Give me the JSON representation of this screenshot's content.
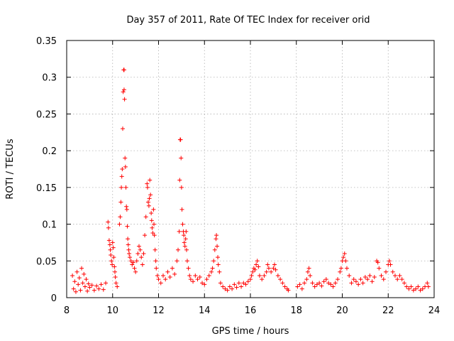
{
  "chart_data": {
    "type": "scatter",
    "title": "Day 357 of 2011, Rate Of TEC Index for receiver orid",
    "xlabel": "GPS time / hours",
    "ylabel": "ROTI / TECUs",
    "xlim": [
      8,
      24
    ],
    "ylim": [
      0,
      0.35
    ],
    "xticks": [
      8,
      10,
      12,
      14,
      16,
      18,
      20,
      22,
      24
    ],
    "xtick_labels": [
      "8",
      "10",
      "12",
      "14",
      "16",
      "18",
      "20",
      "22",
      "24"
    ],
    "yticks": [
      0,
      0.05,
      0.1,
      0.15,
      0.2,
      0.25,
      0.3,
      0.35
    ],
    "ytick_labels": [
      "0",
      "0.05",
      "0.1",
      "0.15",
      "0.2",
      "0.25",
      "0.3",
      "0.35"
    ],
    "grid": true,
    "marker": "+",
    "color": "#ff0000",
    "series": [
      {
        "name": "ROTI",
        "points": [
          [
            8.25,
            0.03
          ],
          [
            8.3,
            0.012
          ],
          [
            8.35,
            0.022
          ],
          [
            8.4,
            0.008
          ],
          [
            8.45,
            0.035
          ],
          [
            8.5,
            0.018
          ],
          [
            8.55,
            0.027
          ],
          [
            8.6,
            0.01
          ],
          [
            8.65,
            0.04
          ],
          [
            8.7,
            0.02
          ],
          [
            8.75,
            0.032
          ],
          [
            8.8,
            0.015
          ],
          [
            8.85,
            0.025
          ],
          [
            8.9,
            0.009
          ],
          [
            8.95,
            0.019
          ],
          [
            9.0,
            0.014
          ],
          [
            9.1,
            0.017
          ],
          [
            9.2,
            0.01
          ],
          [
            9.3,
            0.016
          ],
          [
            9.4,
            0.012
          ],
          [
            9.5,
            0.018
          ],
          [
            9.6,
            0.011
          ],
          [
            9.7,
            0.02
          ],
          [
            9.8,
            0.103
          ],
          [
            9.82,
            0.095
          ],
          [
            9.85,
            0.078
          ],
          [
            9.88,
            0.072
          ],
          [
            9.9,
            0.065
          ],
          [
            9.92,
            0.058
          ],
          [
            9.95,
            0.05
          ],
          [
            9.98,
            0.045
          ],
          [
            10.0,
            0.075
          ],
          [
            10.03,
            0.068
          ],
          [
            10.05,
            0.055
          ],
          [
            10.08,
            0.042
          ],
          [
            10.1,
            0.035
          ],
          [
            10.12,
            0.028
          ],
          [
            10.15,
            0.02
          ],
          [
            10.2,
            0.015
          ],
          [
            10.3,
            0.1
          ],
          [
            10.33,
            0.11
          ],
          [
            10.36,
            0.13
          ],
          [
            10.38,
            0.15
          ],
          [
            10.4,
            0.165
          ],
          [
            10.42,
            0.175
          ],
          [
            10.44,
            0.23
          ],
          [
            10.46,
            0.28
          ],
          [
            10.48,
            0.31
          ],
          [
            10.5,
            0.31
          ],
          [
            10.5,
            0.283
          ],
          [
            10.52,
            0.27
          ],
          [
            10.54,
            0.19
          ],
          [
            10.56,
            0.178
          ],
          [
            10.58,
            0.15
          ],
          [
            10.6,
            0.124
          ],
          [
            10.62,
            0.12
          ],
          [
            10.64,
            0.097
          ],
          [
            10.66,
            0.08
          ],
          [
            10.68,
            0.072
          ],
          [
            10.7,
            0.065
          ],
          [
            10.72,
            0.06
          ],
          [
            10.75,
            0.055
          ],
          [
            10.8,
            0.05
          ],
          [
            10.85,
            0.045
          ],
          [
            10.9,
            0.048
          ],
          [
            10.95,
            0.04
          ],
          [
            11.0,
            0.035
          ],
          [
            11.05,
            0.05
          ],
          [
            11.1,
            0.06
          ],
          [
            11.15,
            0.07
          ],
          [
            11.2,
            0.065
          ],
          [
            11.25,
            0.055
          ],
          [
            11.3,
            0.045
          ],
          [
            11.35,
            0.06
          ],
          [
            11.4,
            0.085
          ],
          [
            11.45,
            0.11
          ],
          [
            11.5,
            0.155
          ],
          [
            11.52,
            0.15
          ],
          [
            11.55,
            0.13
          ],
          [
            11.58,
            0.125
          ],
          [
            11.6,
            0.135
          ],
          [
            11.62,
            0.16
          ],
          [
            11.65,
            0.14
          ],
          [
            11.68,
            0.115
          ],
          [
            11.7,
            0.105
          ],
          [
            11.72,
            0.095
          ],
          [
            11.75,
            0.088
          ],
          [
            11.78,
            0.12
          ],
          [
            11.8,
            0.1
          ],
          [
            11.82,
            0.085
          ],
          [
            11.85,
            0.065
          ],
          [
            11.88,
            0.05
          ],
          [
            11.9,
            0.04
          ],
          [
            11.95,
            0.03
          ],
          [
            12.0,
            0.025
          ],
          [
            12.1,
            0.02
          ],
          [
            12.2,
            0.03
          ],
          [
            12.3,
            0.025
          ],
          [
            12.4,
            0.035
          ],
          [
            12.5,
            0.028
          ],
          [
            12.6,
            0.04
          ],
          [
            12.7,
            0.032
          ],
          [
            12.8,
            0.05
          ],
          [
            12.85,
            0.065
          ],
          [
            12.9,
            0.09
          ],
          [
            12.92,
            0.16
          ],
          [
            12.94,
            0.215
          ],
          [
            12.96,
            0.215
          ],
          [
            12.98,
            0.19
          ],
          [
            13.0,
            0.15
          ],
          [
            13.02,
            0.12
          ],
          [
            13.05,
            0.1
          ],
          [
            13.08,
            0.09
          ],
          [
            13.1,
            0.085
          ],
          [
            13.12,
            0.075
          ],
          [
            13.15,
            0.07
          ],
          [
            13.18,
            0.08
          ],
          [
            13.2,
            0.09
          ],
          [
            13.22,
            0.065
          ],
          [
            13.25,
            0.05
          ],
          [
            13.3,
            0.04
          ],
          [
            13.35,
            0.03
          ],
          [
            13.4,
            0.025
          ],
          [
            13.5,
            0.022
          ],
          [
            13.6,
            0.03
          ],
          [
            13.7,
            0.025
          ],
          [
            13.8,
            0.028
          ],
          [
            13.9,
            0.02
          ],
          [
            14.0,
            0.018
          ],
          [
            14.1,
            0.025
          ],
          [
            14.2,
            0.03
          ],
          [
            14.3,
            0.035
          ],
          [
            14.35,
            0.04
          ],
          [
            14.4,
            0.05
          ],
          [
            14.45,
            0.065
          ],
          [
            14.5,
            0.08
          ],
          [
            14.52,
            0.085
          ],
          [
            14.55,
            0.07
          ],
          [
            14.58,
            0.055
          ],
          [
            14.6,
            0.045
          ],
          [
            14.65,
            0.035
          ],
          [
            14.7,
            0.02
          ],
          [
            14.8,
            0.015
          ],
          [
            14.9,
            0.012
          ],
          [
            15.0,
            0.01
          ],
          [
            15.1,
            0.015
          ],
          [
            15.2,
            0.012
          ],
          [
            15.3,
            0.018
          ],
          [
            15.4,
            0.014
          ],
          [
            15.5,
            0.02
          ],
          [
            15.6,
            0.015
          ],
          [
            15.7,
            0.02
          ],
          [
            15.8,
            0.018
          ],
          [
            15.9,
            0.022
          ],
          [
            16.0,
            0.025
          ],
          [
            16.05,
            0.03
          ],
          [
            16.1,
            0.035
          ],
          [
            16.15,
            0.04
          ],
          [
            16.2,
            0.038
          ],
          [
            16.25,
            0.045
          ],
          [
            16.3,
            0.05
          ],
          [
            16.35,
            0.042
          ],
          [
            16.4,
            0.03
          ],
          [
            16.5,
            0.025
          ],
          [
            16.6,
            0.03
          ],
          [
            16.7,
            0.035
          ],
          [
            16.75,
            0.045
          ],
          [
            16.8,
            0.04
          ],
          [
            16.9,
            0.035
          ],
          [
            17.0,
            0.04
          ],
          [
            17.05,
            0.045
          ],
          [
            17.1,
            0.038
          ],
          [
            17.2,
            0.03
          ],
          [
            17.3,
            0.025
          ],
          [
            17.4,
            0.02
          ],
          [
            17.5,
            0.015
          ],
          [
            17.6,
            0.012
          ],
          [
            17.65,
            0.01
          ],
          [
            18.05,
            0.015
          ],
          [
            18.15,
            0.018
          ],
          [
            18.25,
            0.012
          ],
          [
            18.35,
            0.02
          ],
          [
            18.45,
            0.025
          ],
          [
            18.5,
            0.035
          ],
          [
            18.55,
            0.04
          ],
          [
            18.6,
            0.03
          ],
          [
            18.7,
            0.02
          ],
          [
            18.8,
            0.015
          ],
          [
            18.9,
            0.018
          ],
          [
            19.0,
            0.02
          ],
          [
            19.1,
            0.016
          ],
          [
            19.2,
            0.022
          ],
          [
            19.3,
            0.025
          ],
          [
            19.4,
            0.02
          ],
          [
            19.5,
            0.018
          ],
          [
            19.6,
            0.015
          ],
          [
            19.7,
            0.02
          ],
          [
            19.8,
            0.025
          ],
          [
            19.9,
            0.035
          ],
          [
            19.95,
            0.04
          ],
          [
            20.0,
            0.05
          ],
          [
            20.05,
            0.055
          ],
          [
            20.1,
            0.06
          ],
          [
            20.15,
            0.05
          ],
          [
            20.2,
            0.04
          ],
          [
            20.3,
            0.03
          ],
          [
            20.4,
            0.02
          ],
          [
            20.5,
            0.025
          ],
          [
            20.6,
            0.022
          ],
          [
            20.7,
            0.018
          ],
          [
            20.8,
            0.025
          ],
          [
            20.9,
            0.02
          ],
          [
            21.0,
            0.028
          ],
          [
            21.1,
            0.025
          ],
          [
            21.2,
            0.03
          ],
          [
            21.3,
            0.022
          ],
          [
            21.4,
            0.028
          ],
          [
            21.5,
            0.05
          ],
          [
            21.55,
            0.048
          ],
          [
            21.6,
            0.04
          ],
          [
            21.7,
            0.03
          ],
          [
            21.8,
            0.025
          ],
          [
            21.9,
            0.035
          ],
          [
            22.0,
            0.045
          ],
          [
            22.05,
            0.05
          ],
          [
            22.1,
            0.045
          ],
          [
            22.2,
            0.035
          ],
          [
            22.3,
            0.03
          ],
          [
            22.4,
            0.025
          ],
          [
            22.5,
            0.03
          ],
          [
            22.6,
            0.025
          ],
          [
            22.7,
            0.02
          ],
          [
            22.8,
            0.015
          ],
          [
            22.9,
            0.012
          ],
          [
            23.0,
            0.015
          ],
          [
            23.1,
            0.01
          ],
          [
            23.2,
            0.012
          ],
          [
            23.3,
            0.015
          ],
          [
            23.4,
            0.01
          ],
          [
            23.5,
            0.012
          ],
          [
            23.6,
            0.015
          ],
          [
            23.7,
            0.02
          ],
          [
            23.75,
            0.015
          ]
        ]
      }
    ]
  }
}
